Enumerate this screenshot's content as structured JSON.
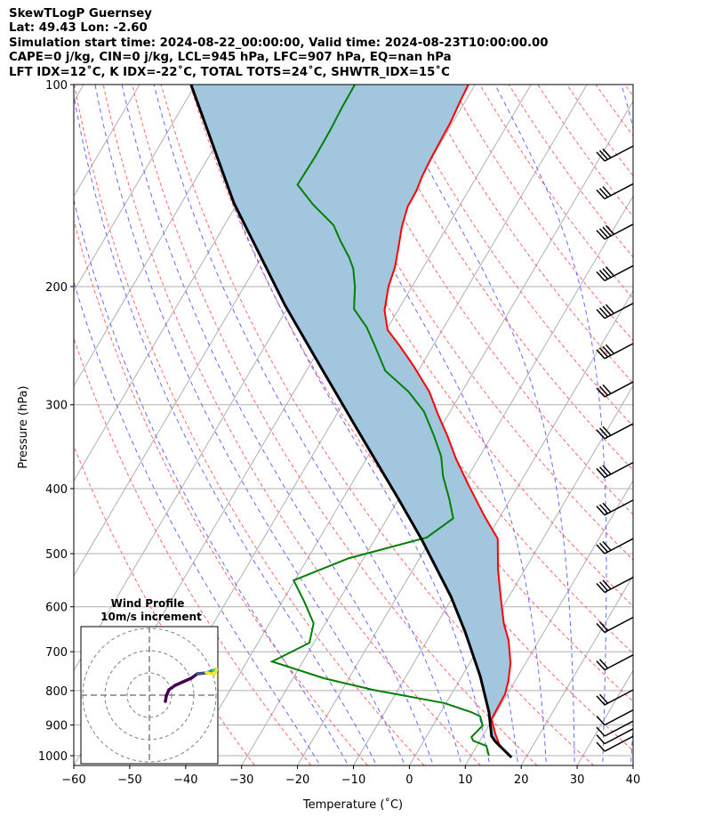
{
  "header": {
    "title": "SkewTLogP Guernsey",
    "location": "Lat: 49.43   Lon: -2.60",
    "times": "Simulation start time: 2024-08-22_00:00:00, Valid time: 2024-08-23T10:00:00.00",
    "indices1": "CAPE=0 j/kg, CIN=0 j/kg, LCL=945 hPa, LFC=907 hPa, EQ=nan hPa",
    "indices2": "LFT IDX=12˚C, K IDX=-22˚C, TOTAL TOTS=24˚C, SHWTR_IDX=15˚C"
  },
  "chart_data": {
    "type": "line",
    "subtype": "skewt-logp",
    "xlabel": "Temperature (˚C)",
    "ylabel": "Pressure (hPa)",
    "xlim": [
      -60,
      40
    ],
    "ylim": [
      1030,
      100
    ],
    "xticks": [
      "−60",
      "−50",
      "−40",
      "−30",
      "−20",
      "−10",
      "0",
      "10",
      "20",
      "30",
      "40"
    ],
    "xtick_values": [
      -60,
      -50,
      -40,
      -30,
      -20,
      -10,
      0,
      10,
      20,
      30,
      40
    ],
    "yticks": [
      "100",
      "200",
      "300",
      "400",
      "500",
      "600",
      "700",
      "800",
      "900",
      "1000"
    ],
    "ytick_values": [
      100,
      200,
      300,
      400,
      500,
      600,
      700,
      800,
      900,
      1000
    ],
    "grid": true,
    "colors": {
      "temperature": "#ff0000",
      "dewpoint": "#008000",
      "parcel": "#000000",
      "shade": "#a3c6df",
      "dry_adiabat": "#ff6666",
      "moist_adiabat": "#6666ff",
      "isotherm": "#b0b0b0"
    },
    "series": [
      {
        "name": "Temperature",
        "p": [
          100,
          106,
          114,
          120,
          129,
          137,
          144,
          152,
          163,
          176,
          187,
          200,
          217,
          232,
          246,
          262,
          287,
          310,
          334,
          361,
          395,
          440,
          475,
          528,
          579,
          635,
          674,
          728,
          774,
          810,
          848,
          882,
          929,
          967,
          1006
        ],
        "t": [
          -61.2,
          -60.9,
          -60.4,
          -60.3,
          -60.1,
          -59.8,
          -59.3,
          -59.2,
          -58.1,
          -56.4,
          -55.1,
          -54.2,
          -52.4,
          -49.8,
          -45.7,
          -41.5,
          -35.8,
          -31.9,
          -27.9,
          -24.0,
          -19.0,
          -12.8,
          -8.1,
          -4.8,
          -1.5,
          1.9,
          4.6,
          7.3,
          8.8,
          9.6,
          9.7,
          9.8,
          12.1,
          14.1,
          17.4
        ]
      },
      {
        "name": "Dewpoint",
        "p": [
          100,
          108,
          117,
          128,
          141,
          151,
          162,
          171,
          181,
          188,
          200,
          216,
          230,
          246,
          267,
          287,
          307,
          334,
          358,
          383,
          414,
          443,
          473,
          508,
          548,
          588,
          635,
          679,
          724,
          767,
          798,
          835,
          861,
          874,
          902,
          938,
          950,
          967,
          1000
        ],
        "t": [
          -81.5,
          -81.4,
          -81.1,
          -81.0,
          -81.2,
          -76.3,
          -70.5,
          -67.6,
          -64.3,
          -62.4,
          -60.2,
          -58.0,
          -53.8,
          -50.2,
          -45.9,
          -39.5,
          -34.7,
          -30.3,
          -26.9,
          -24.5,
          -21.0,
          -18.2,
          -20.9,
          -32.7,
          -40.2,
          -36.2,
          -32.1,
          -30.8,
          -35.5,
          -24.4,
          -14.4,
          -0.3,
          5.4,
          7.5,
          8.9,
          8.1,
          8.8,
          11.7,
          13.2
        ]
      },
      {
        "name": "Parcel",
        "p": [
          100,
          150,
          213,
          262,
          324,
          414,
          478,
          579,
          654,
          762,
          861,
          935,
          952,
          1006
        ],
        "t": [
          -110.8,
          -90.7,
          -70.8,
          -58.2,
          -45.2,
          -30.1,
          -21.4,
          -10.4,
          -4.1,
          3.3,
          8.6,
          11.6,
          12.8,
          17.4
        ]
      }
    ],
    "wind_barbs": {
      "p": [
        130,
        148,
        170,
        196,
        223,
        256,
        292,
        337,
        385,
        438,
        500,
        571,
        655,
        745,
        840,
        900,
        935,
        960,
        985
      ],
      "speed_kt": [
        30,
        30,
        35,
        35,
        40,
        35,
        30,
        30,
        25,
        25,
        25,
        25,
        20,
        20,
        15,
        10,
        10,
        10,
        10
      ]
    },
    "hodograph": {
      "title": "Wind Profile",
      "subtitle": "10m/s increment",
      "rings_ms": [
        10,
        20,
        30
      ],
      "u": [
        7.2,
        7.6,
        8.8,
        11.6,
        15.2,
        18.8,
        21.6,
        25.6,
        28.8,
        30.4,
        29.2,
        25.6
      ],
      "v": [
        -2.8,
        -0.4,
        2.4,
        4.4,
        6.0,
        7.6,
        9.6,
        10.0,
        11.2,
        11.6,
        9.2,
        10.2
      ]
    }
  }
}
